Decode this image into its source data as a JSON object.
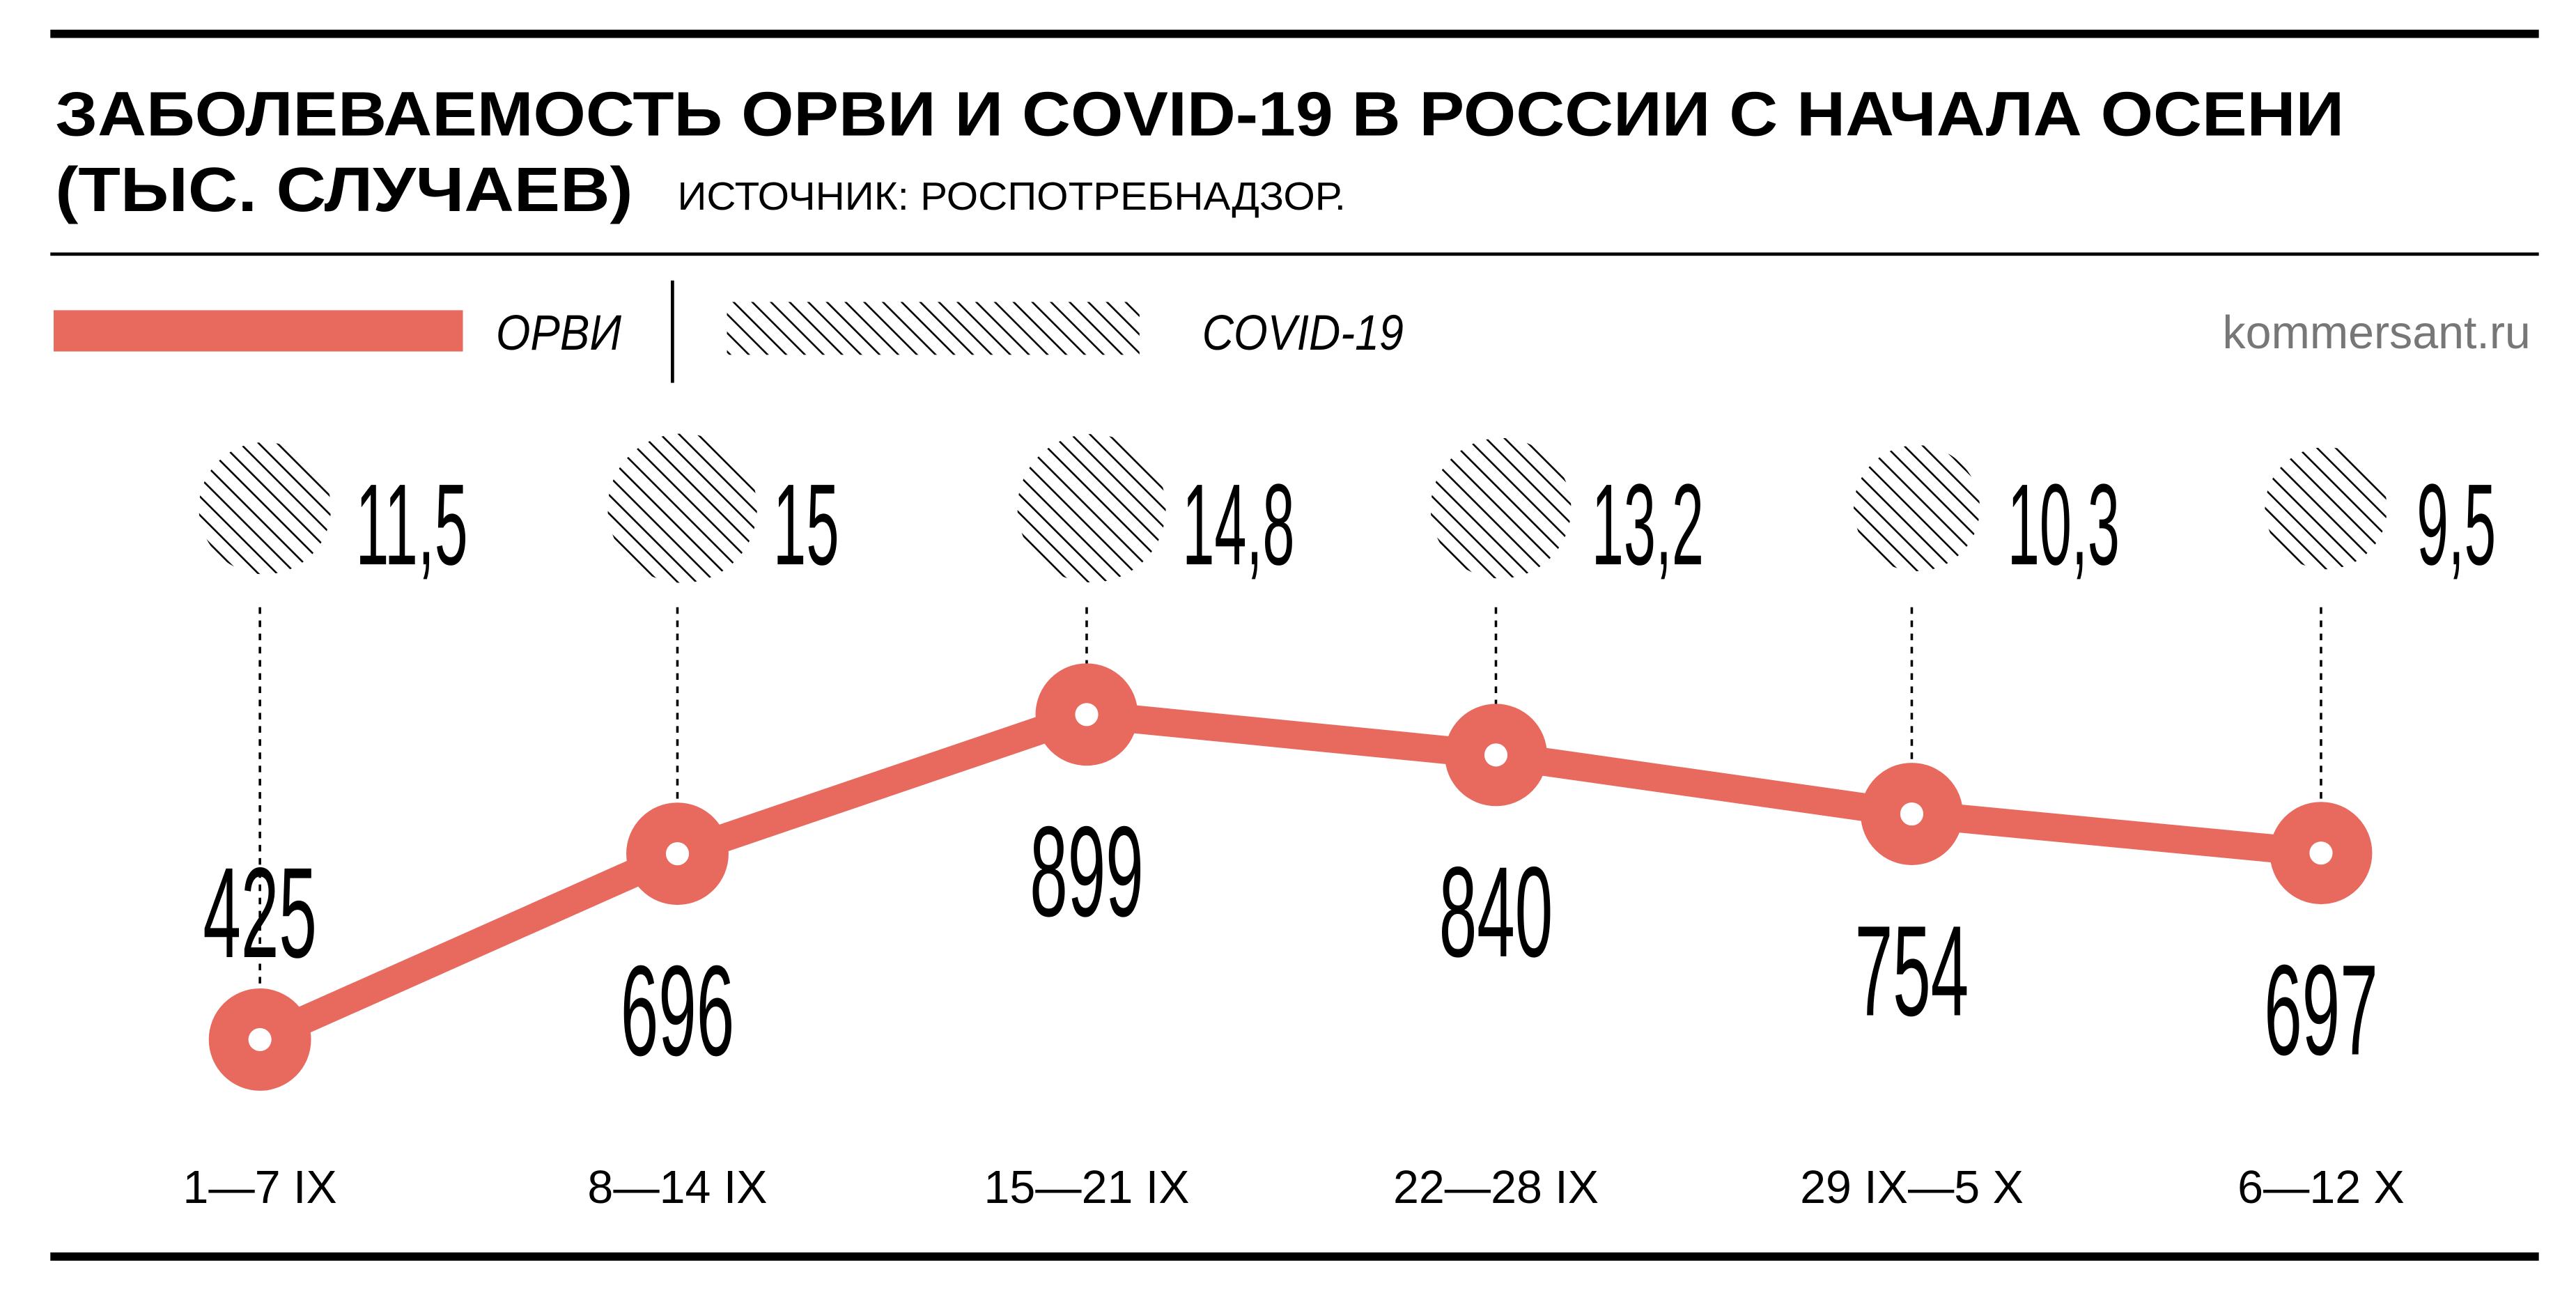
{
  "chart_data": {
    "type": "line",
    "title": "ЗАБОЛЕВАЕМОСТЬ ОРВИ И COVID-19 В РОССИИ С НАЧАЛА ОСЕНИ",
    "subtitle": "(ТЫС. СЛУЧАЕВ)",
    "source": "ИСТОЧНИК: РОСПОТРЕБНАДЗОР.",
    "site": "kommersant.ru",
    "legend_placement": "top-left",
    "grid": false,
    "categories": [
      "1—7 IX",
      "8—14 IX",
      "15—21 IX",
      "22—28 IX",
      "29 IX—5 X",
      "6—12 X"
    ],
    "series": [
      {
        "name": "ОРВИ",
        "color": "#e8695e",
        "style": "line-with-ring-markers",
        "values": [
          425,
          696,
          899,
          840,
          754,
          697
        ],
        "labels": [
          "425",
          "696",
          "899",
          "840",
          "754",
          "697"
        ]
      },
      {
        "name": "COVID-19",
        "color": "#000000",
        "style": "hatched-circle-labels",
        "values": [
          11.5,
          15,
          14.8,
          13.2,
          10.3,
          9.5
        ],
        "labels": [
          "11,5",
          "15",
          "14,8",
          "13,2",
          "10,3",
          "9,5"
        ]
      }
    ]
  }
}
